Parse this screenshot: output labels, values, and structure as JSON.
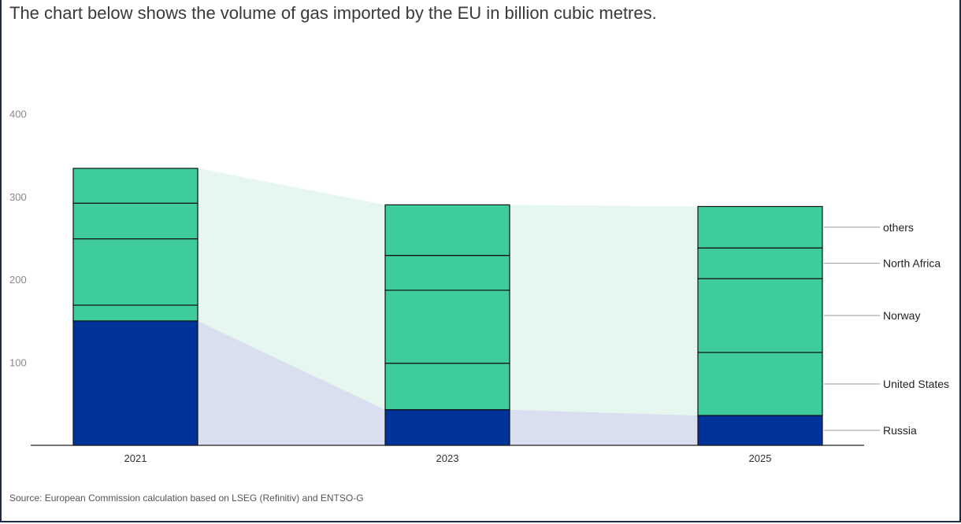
{
  "title": "The chart below shows the volume of gas imported by the EU in billion cubic metres.",
  "source": "Source: European Commission calculation based on LSEG (Refinitiv) and ENTSO-G",
  "colors": {
    "russia": "#00339a",
    "other_segments": "#3ecc9a",
    "russia_band": "#dadff0",
    "other_band": "#e6f7f0",
    "segment_border": "#111111",
    "axis_line": "#222222",
    "tick_label": "#888888",
    "category_label": "#333333",
    "leader_line": "#999999",
    "series_label": "#222222"
  },
  "chart_data": {
    "type": "bar",
    "stacked": true,
    "categories": [
      "2021",
      "2023",
      "2025"
    ],
    "series": [
      {
        "name": "Russia",
        "values": [
          150,
          43,
          36
        ]
      },
      {
        "name": "United States",
        "values": [
          19,
          56,
          76
        ]
      },
      {
        "name": "Norway",
        "values": [
          80,
          88,
          89
        ]
      },
      {
        "name": "North Africa",
        "values": [
          43,
          42,
          37
        ]
      },
      {
        "name": "others",
        "values": [
          42,
          61,
          50
        ]
      }
    ],
    "yticks": [
      100,
      200,
      300,
      400
    ],
    "ylim": [
      0,
      400
    ],
    "grid": false,
    "legend": "right, labels of the 2025 bar segments"
  }
}
